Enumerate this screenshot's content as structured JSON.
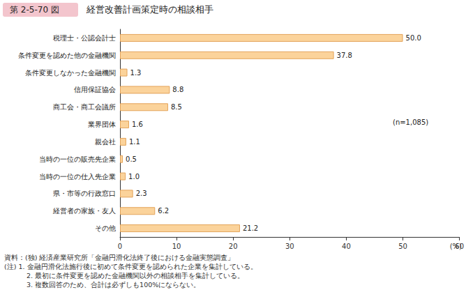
{
  "chart_data": {
    "type": "bar",
    "orientation": "horizontal",
    "figure_label": "第 2-5-70 図",
    "title": "経営改善計画策定時の相談相手",
    "categories": [
      "税理士・公認会計士",
      "条件変更を認めた他の金融機関",
      "条件変更しなかった金融機関",
      "信用保証協会",
      "商工会・商工会議所",
      "業界団体",
      "親会社",
      "当時の一位の販売先企業",
      "当時の一位の仕入先企業",
      "県・市等の行政窓口",
      "経営者の家族・友人",
      "その他"
    ],
    "values": [
      50.0,
      37.8,
      1.3,
      8.8,
      8.5,
      1.6,
      1.1,
      0.5,
      1.0,
      2.3,
      6.2,
      21.2
    ],
    "value_labels": [
      "50.0",
      "37.8",
      "1.3",
      "8.8",
      "8.5",
      "1.6",
      "1.1",
      "0.5",
      "1.0",
      "2.3",
      "6.2",
      "21.2"
    ],
    "color": "#fbd39b",
    "xlim": [
      0,
      60
    ],
    "xticks": [
      0,
      10,
      20,
      30,
      40,
      50,
      60
    ],
    "x_label": "(%)",
    "grid": false,
    "data_labels": true,
    "annotations": [
      "(n=1,085)"
    ],
    "notes": [
      "資料：(独) 経済産業研究所「金融円滑化法終了後における金融実態調査」",
      "(注) 1. 金融円滑化法施行後に初めて条件変更を認められた企業を集計している。",
      "2. 最初に条件変更を認めた金融機関以外の相談相手を集計している。",
      "3. 複数回答のため、合計は必ずしも100%にならない。"
    ]
  }
}
